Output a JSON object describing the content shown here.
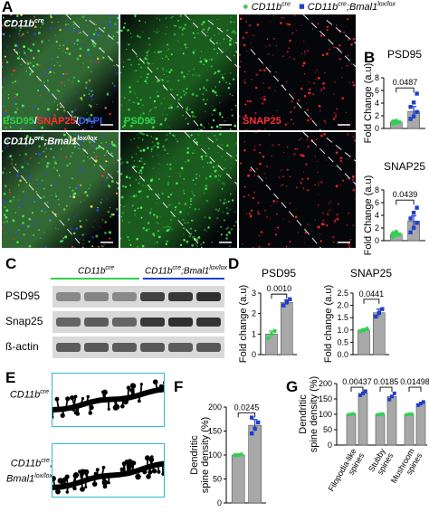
{
  "panels": {
    "A": "A",
    "B": "B",
    "C": "C",
    "D": "D",
    "E": "E",
    "F": "F",
    "G": "G"
  },
  "legend": {
    "item1_base": "CD11b",
    "item1_sup": "cre",
    "item2_base": "CD11b",
    "item2_sup": "cre",
    "item2_suffix": ";Bmal1",
    "item2_sup2": "lox/lox",
    "color1": "#2fd14f",
    "color2": "#1f3fcc"
  },
  "micrographs": {
    "row1_genotype_base": "CD11b",
    "row1_genotype_sup": "cre",
    "row2_genotype_base": "CD11b",
    "row2_genotype_sup": "cre",
    "row2_genotype_mid": ";Bmal1",
    "row2_genotype_sup2": "lox/lox",
    "merge_label_psd95": "PSD95",
    "merge_label_sep1": "/",
    "merge_label_snap25": "SNAP25",
    "merge_label_sep2": "/",
    "merge_label_dapi": "DAPI",
    "green_label": "PSD95",
    "red_label": "SNAP25"
  },
  "western": {
    "col1_base": "CD11b",
    "col1_sup": "cre",
    "col2_base": "CD11b",
    "col2_sup": "cre",
    "col2_mid": ";Bmal1",
    "col2_sup2": "lox/lox",
    "rows": [
      "PSD95",
      "Snap25",
      "ß-actin"
    ]
  },
  "dendrites": {
    "row1_base": "CD11b",
    "row1_sup": "cre",
    "row2_base": "CD11b",
    "row2_sup": "cre",
    "row2_mid": ";",
    "row2_line2": "Bmal1",
    "row2_sup2": "lox/lox"
  },
  "chart_data": [
    {
      "id": "B-top",
      "type": "bar",
      "title": "PSD95",
      "ylabel": "Fold Change (a.u)",
      "ylim": [
        0,
        8
      ],
      "yticks": [
        0,
        2,
        4,
        6,
        8
      ],
      "categories": [
        "CD11b cre",
        "CD11b cre;Bmal1 lox/lox"
      ],
      "values": [
        1.0,
        2.7
      ],
      "errors": [
        0.15,
        0.75
      ],
      "points": [
        [
          0.75,
          0.9,
          1.0,
          1.1,
          1.2
        ],
        [
          1.5,
          1.9,
          2.6,
          3.4,
          4.1,
          5.5
        ]
      ],
      "annotation": "0.0487"
    },
    {
      "id": "B-bottom",
      "type": "bar",
      "title": "SNAP25",
      "ylabel": "Fold Change (a.u)",
      "ylim": [
        0,
        8
      ],
      "yticks": [
        0,
        2,
        4,
        6,
        8
      ],
      "categories": [
        "CD11b cre",
        "CD11b cre;Bmal1 lox/lox"
      ],
      "values": [
        1.0,
        3.1
      ],
      "errors": [
        0.2,
        0.8
      ],
      "points": [
        [
          0.6,
          0.9,
          1.0,
          1.2,
          1.4
        ],
        [
          1.3,
          2.0,
          2.8,
          3.5,
          4.4,
          5.2
        ]
      ],
      "annotation": "0.0439"
    },
    {
      "id": "D-left",
      "type": "bar",
      "title": "PSD95",
      "ylabel": "Fold change (a.u)",
      "ylim": [
        0,
        3
      ],
      "yticks": [
        0,
        1,
        2,
        3
      ],
      "categories": [
        "CD11b cre",
        "CD11b cre;Bmal1 lox/lox"
      ],
      "values": [
        1.0,
        2.55
      ],
      "errors": [
        0.15,
        0.12
      ],
      "points": [
        [
          0.8,
          1.0,
          1.15
        ],
        [
          2.4,
          2.55,
          2.7
        ]
      ],
      "annotation": "0.0010"
    },
    {
      "id": "D-right",
      "type": "bar",
      "title": "SNAP25",
      "ylabel": "Fold change (a.u)",
      "ylim": [
        0,
        2.5
      ],
      "yticks": [
        0,
        0.5,
        1.0,
        1.5,
        2.0,
        2.5
      ],
      "categories": [
        "CD11b cre",
        "CD11b cre;Bmal1 lox/lox"
      ],
      "values": [
        1.0,
        1.7
      ],
      "errors": [
        0.05,
        0.15
      ],
      "points": [
        [
          0.95,
          1.0,
          1.05
        ],
        [
          1.55,
          1.7,
          1.85
        ]
      ],
      "annotation": "0.0441"
    },
    {
      "id": "F",
      "type": "bar",
      "ylabel": "Dendritic spine density (%)",
      "ylim": [
        0,
        200
      ],
      "yticks": [
        0,
        50,
        100,
        150,
        200
      ],
      "categories": [
        "CD11b cre",
        "CD11b cre;Bmal1 lox/lox"
      ],
      "values": [
        100,
        162
      ],
      "errors": [
        2,
        12
      ],
      "points": [
        [
          99,
          100,
          101,
          100
        ],
        [
          145,
          155,
          168,
          178
        ]
      ],
      "annotation": "0.0245"
    },
    {
      "id": "G",
      "type": "bar",
      "ylabel": "Dendritic spine density (%)",
      "ylim": [
        0,
        200
      ],
      "yticks": [
        0,
        50,
        100,
        150,
        200
      ],
      "categories": [
        "Filopodia-like spines",
        "Stubby spines",
        "Mushroom spines"
      ],
      "series": [
        {
          "values": [
            100,
            100,
            100
          ],
          "points": [
            [
              99,
              100,
              101
            ],
            [
              99,
              100,
              101
            ],
            [
              99,
              100,
              101
            ]
          ]
        },
        {
          "values": [
            168,
            158,
            135
          ],
          "points": [
            [
              162,
              168,
              175
            ],
            [
              148,
              158,
              168
            ],
            [
              130,
              135,
              140
            ]
          ]
        }
      ],
      "annotations": [
        "0.00437",
        "0.0185",
        "0.01498"
      ]
    }
  ]
}
